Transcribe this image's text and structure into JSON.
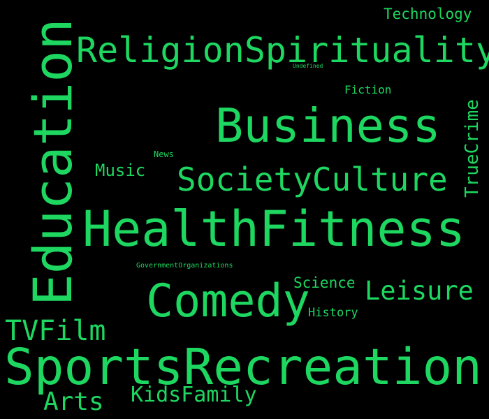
{
  "colors": {
    "background": "#000000",
    "word": "#1ed760"
  },
  "words": {
    "technology": "Technology",
    "religion_spirituality": "ReligionSpirituality",
    "undefined": "Undefined",
    "fiction": "Fiction",
    "education": "Education",
    "business": "Business",
    "true_crime": "TrueCrime",
    "news": "News",
    "music": "Music",
    "society_culture": "SocietyCulture",
    "health_fitness": "HealthFitness",
    "government_organizations": "GovernmentOrganizations",
    "science": "Science",
    "comedy": "Comedy",
    "leisure": "Leisure",
    "history": "History",
    "tv_film": "TVFilm",
    "sports_recreation": "SportsRecreation",
    "kids_family": "KidsFamily",
    "arts": "Arts"
  }
}
